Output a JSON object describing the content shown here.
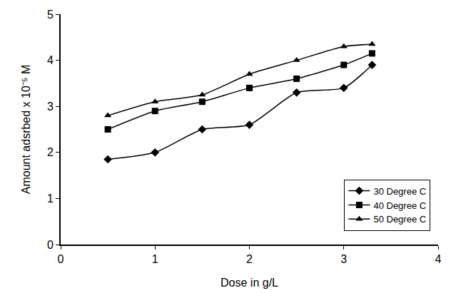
{
  "chart_data": {
    "type": "line",
    "x_label": "Dose in g/L",
    "y_label": "Amount adsrbed x 10⁻⁵ M",
    "xlim": [
      0,
      4
    ],
    "xticks": [
      0,
      1,
      2,
      3,
      4
    ],
    "ylim": [
      0,
      5
    ],
    "yticks": [
      0,
      1,
      2,
      3,
      4,
      5
    ],
    "grid": false,
    "legend": "lower right",
    "series": [
      {
        "name": "30 Degree C",
        "color": "#000000",
        "marker": "diamond",
        "line_style": "solid",
        "x": [
          0.5,
          1,
          1.5,
          2,
          2.5,
          3,
          3.3
        ],
        "values": [
          1.85,
          2.0,
          2.5,
          2.6,
          3.3,
          3.4,
          3.9
        ]
      },
      {
        "name": "40 Degree C",
        "color": "#000000",
        "marker": "square",
        "line_style": "solid",
        "x": [
          0.5,
          1,
          1.5,
          2,
          2.5,
          3,
          3.3
        ],
        "values": [
          2.5,
          2.9,
          3.1,
          3.4,
          3.6,
          3.9,
          4.15
        ]
      },
      {
        "name": "50 Degree C",
        "color": "#000000",
        "marker": "triangle-up",
        "line_style": "solid",
        "x": [
          0.5,
          1,
          1.5,
          2,
          2.5,
          3,
          3.3
        ],
        "values": [
          2.8,
          3.1,
          3.25,
          3.7,
          4.0,
          4.3,
          4.35
        ]
      }
    ]
  }
}
